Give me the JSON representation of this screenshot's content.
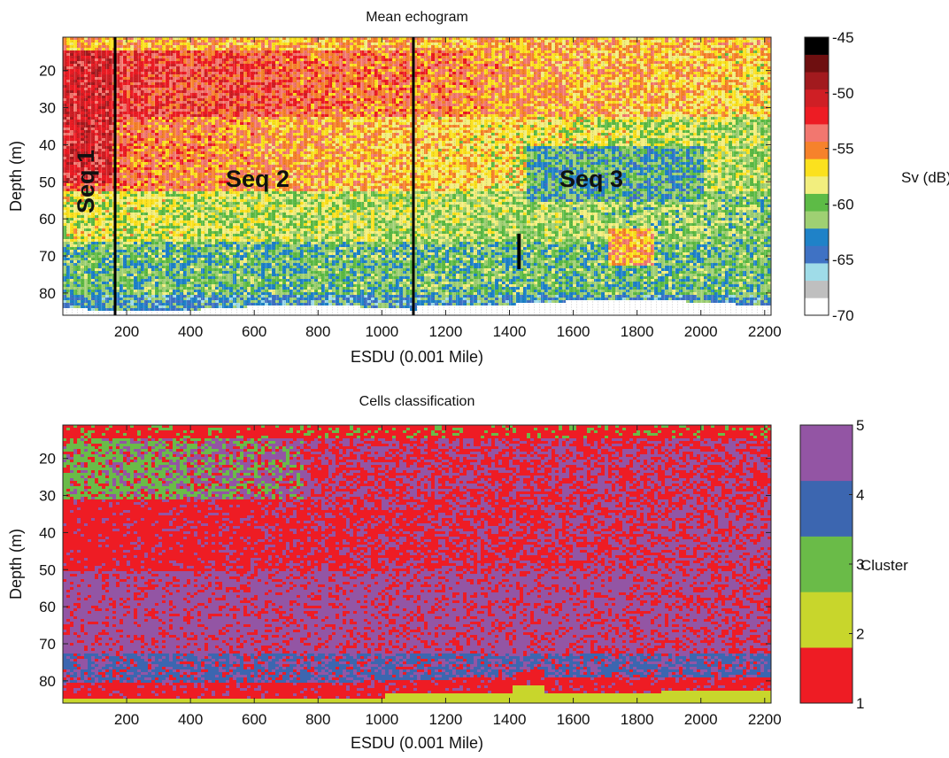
{
  "chart_data": [
    {
      "type": "heatmap",
      "title": "Mean echogram",
      "xlabel": "ESDU (0.001 Mile)",
      "ylabel": "Depth (m)",
      "xlim": [
        0,
        2220
      ],
      "ylim": [
        86,
        11
      ],
      "x_ticks": [
        200,
        400,
        600,
        800,
        1000,
        1200,
        1400,
        1600,
        1800,
        2000,
        2200
      ],
      "y_ticks": [
        20,
        30,
        40,
        50,
        60,
        70,
        80
      ],
      "colorbar": {
        "label": "Sv (dB)",
        "range": [
          -70,
          -45
        ],
        "ticks": [
          -45,
          -50,
          -55,
          -60,
          -65,
          -70
        ],
        "colors": [
          "#ffffff",
          "#bfbfbf",
          "#9fdce8",
          "#3f72c4",
          "#1f82c8",
          "#9fd073",
          "#5dbb46",
          "#f2ee7e",
          "#fbe11e",
          "#f6822b",
          "#f2776f",
          "#ed1c24",
          "#cf1f25",
          "#a21a1e",
          "#6e0f10",
          "#000000"
        ]
      },
      "grid": false,
      "sequence_boundaries_x": [
        165,
        1105
      ],
      "annotations": [
        "Seq 1",
        "Seq 2",
        "Seq 3"
      ]
    },
    {
      "type": "heatmap",
      "title": "Cells classification",
      "xlabel": "ESDU (0.001 Mile)",
      "ylabel": "Depth (m)",
      "xlim": [
        0,
        2220
      ],
      "ylim": [
        86,
        11
      ],
      "x_ticks": [
        200,
        400,
        600,
        800,
        1000,
        1200,
        1400,
        1600,
        1800,
        2000,
        2200
      ],
      "y_ticks": [
        20,
        30,
        40,
        50,
        60,
        70,
        80
      ],
      "colorbar": {
        "label": "Cluster",
        "range": [
          1,
          5
        ],
        "ticks": [
          1,
          2,
          3,
          4,
          5
        ],
        "class_colors": [
          "#ee1c24",
          "#c8d62c",
          "#6abb48",
          "#3c66b0",
          "#9355a4"
        ]
      },
      "grid": false
    }
  ]
}
